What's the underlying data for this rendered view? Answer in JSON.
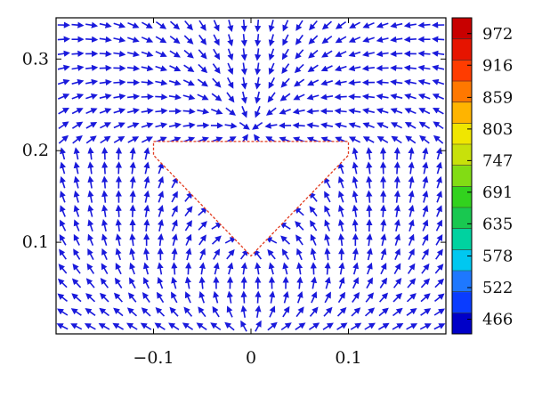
{
  "chart_data": {
    "type": "quiver",
    "title": "",
    "xlabel": "",
    "ylabel": "",
    "xlim": [
      -0.2,
      0.2
    ],
    "ylim": [
      0.0,
      0.345
    ],
    "x_ticks": [
      -0.1,
      0,
      0.1
    ],
    "x_tick_labels": [
      "−0.1",
      "0",
      "0.1"
    ],
    "y_ticks": [
      0.1,
      0.2,
      0.3
    ],
    "y_tick_labels": [
      "0.1",
      "0.2",
      "0.3"
    ],
    "grid": false,
    "obstacle": {
      "shape": "inverted-triangle",
      "vertices": [
        [
          -0.1,
          0.21
        ],
        [
          0.1,
          0.21
        ],
        [
          0.1,
          0.195
        ],
        [
          0.0,
          0.085
        ],
        [
          -0.1,
          0.195
        ]
      ]
    },
    "field": {
      "description_free": true,
      "arrow_color": "#1a1adc",
      "sources": [
        [
          0.0,
          0.0
        ]
      ],
      "sinks": [
        [
          0.0,
          0.085
        ]
      ],
      "nx": 28,
      "ny": 22
    },
    "colorbar": {
      "min": 440,
      "max": 1000,
      "tick_values": [
        972,
        916,
        859,
        803,
        747,
        691,
        635,
        578,
        522,
        466
      ],
      "tick_labels": [
        "972",
        "916",
        "859",
        "803",
        "747",
        "691",
        "635",
        "578",
        "522",
        "466"
      ],
      "colors": [
        "#0000c8",
        "#0a3cff",
        "#1e78ff",
        "#00c8f0",
        "#00d2a0",
        "#19c850",
        "#32d21e",
        "#82dc14",
        "#c8e10a",
        "#f0e600",
        "#ffb400",
        "#ff7800",
        "#ff3c00",
        "#e61400",
        "#c80000"
      ]
    }
  }
}
